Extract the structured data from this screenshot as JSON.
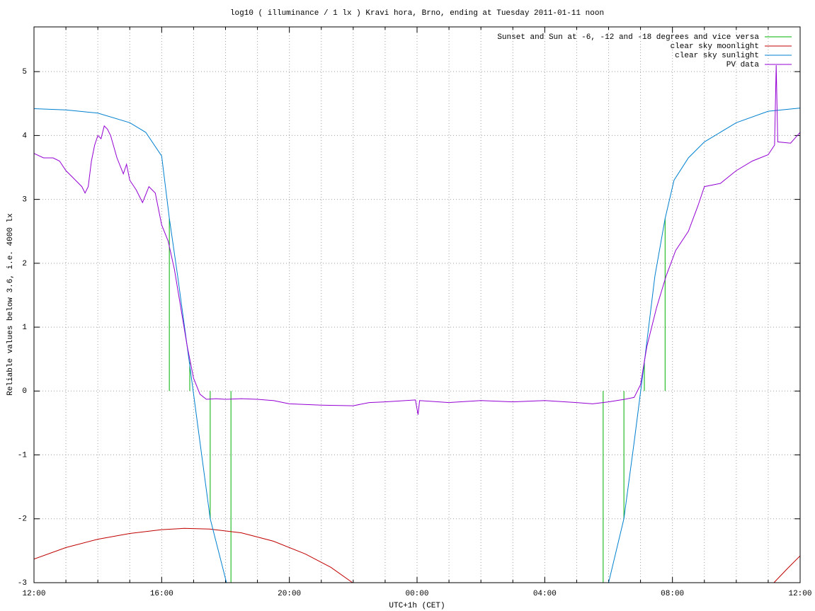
{
  "chart_data": {
    "type": "line",
    "title": "log10 ( illuminance / 1 lx ) Kravi hora, Brno, ending at Tuesday 2011-01-11 noon",
    "x_label": "UTC+1h (CET)",
    "y_label": "Reliable values below 3.6, i.e. 4000 lx",
    "xlim": [
      0,
      24
    ],
    "xticks": [
      {
        "value": 0,
        "label": "12:00"
      },
      {
        "value": 4,
        "label": "16:00"
      },
      {
        "value": 8,
        "label": "20:00"
      },
      {
        "value": 12,
        "label": "00:00"
      },
      {
        "value": 16,
        "label": "04:00"
      },
      {
        "value": 20,
        "label": "08:00"
      },
      {
        "value": 24,
        "label": "12:00"
      }
    ],
    "xminor": 4,
    "ylim": [
      -3,
      5.7
    ],
    "yticks": [
      -3,
      -2,
      -1,
      0,
      1,
      2,
      3,
      4,
      5
    ],
    "grid": true,
    "legend": "top-right",
    "series": [
      {
        "name": "Sunset and Sun at -6, -12 and -18 degrees and vice versa",
        "color": "#00b000",
        "style": "impulses",
        "x": [
          4.24,
          4.88,
          5.52,
          6.17,
          17.83,
          18.48,
          19.12,
          19.77
        ],
        "values": [
          2.7,
          0.45,
          -2.0,
          -3,
          -3,
          -2.0,
          0.45,
          2.7
        ]
      },
      {
        "name": "clear sky moonlight",
        "color": "#c00000",
        "style": "line",
        "x": [
          0,
          1,
          2,
          3,
          4,
          4.7,
          5.5,
          6.5,
          7.5,
          8.5,
          9.3,
          9.98,
          23.18,
          23.6,
          24
        ],
        "values": [
          -2.63,
          -2.45,
          -2.32,
          -2.23,
          -2.17,
          -2.15,
          -2.16,
          -2.22,
          -2.35,
          -2.55,
          -2.76,
          -3,
          -3,
          -2.78,
          -2.58
        ]
      },
      {
        "name": "clear sky sunlight",
        "color": "#0080d0",
        "style": "line",
        "x": [
          0,
          1,
          2,
          3,
          3.5,
          4,
          4.24,
          4.5,
          4.88,
          5.2,
          5.52,
          6.03,
          18.0,
          18.48,
          18.8,
          19.12,
          19.45,
          19.77,
          20.05,
          20.5,
          21,
          22,
          23,
          24
        ],
        "values": [
          4.42,
          4.4,
          4.35,
          4.2,
          4.05,
          3.68,
          2.7,
          1.8,
          0.4,
          -0.8,
          -2.0,
          -3,
          -3,
          -2.0,
          -0.8,
          0.45,
          1.8,
          2.7,
          3.3,
          3.65,
          3.9,
          4.2,
          4.38,
          4.43
        ]
      },
      {
        "name": "PV data",
        "color": "#9400d3",
        "style": "line",
        "x": [
          0,
          0.3,
          0.6,
          0.8,
          1.0,
          1.2,
          1.5,
          1.6,
          1.7,
          1.8,
          1.9,
          2.0,
          2.1,
          2.2,
          2.3,
          2.4,
          2.6,
          2.8,
          2.9,
          3.0,
          3.2,
          3.4,
          3.6,
          3.8,
          4.0,
          4.2,
          4.4,
          4.6,
          4.8,
          5.0,
          5.2,
          5.4,
          5.7,
          6.0,
          6.5,
          7.0,
          7.5,
          8,
          9,
          10,
          10.5,
          11,
          11.95,
          12.03,
          12.08,
          13,
          14,
          15,
          16,
          17,
          17.5,
          18,
          18.5,
          18.8,
          19.0,
          19.2,
          19.5,
          19.8,
          20.1,
          20.5,
          20.8,
          21,
          21.5,
          22,
          22.5,
          23,
          23.2,
          23.25,
          23.3,
          23.7,
          24
        ],
        "values": [
          3.72,
          3.65,
          3.65,
          3.6,
          3.45,
          3.35,
          3.2,
          3.1,
          3.2,
          3.6,
          3.85,
          4.0,
          3.95,
          4.15,
          4.1,
          4.0,
          3.65,
          3.4,
          3.55,
          3.3,
          3.15,
          2.95,
          3.2,
          3.1,
          2.6,
          2.35,
          1.9,
          1.3,
          0.7,
          0.2,
          -0.05,
          -0.13,
          -0.12,
          -0.13,
          -0.12,
          -0.13,
          -0.15,
          -0.2,
          -0.22,
          -0.23,
          -0.18,
          -0.17,
          -0.14,
          -0.37,
          -0.15,
          -0.18,
          -0.15,
          -0.17,
          -0.15,
          -0.18,
          -0.2,
          -0.17,
          -0.13,
          -0.1,
          0.1,
          0.7,
          1.3,
          1.8,
          2.2,
          2.5,
          2.9,
          3.2,
          3.25,
          3.45,
          3.6,
          3.7,
          3.85,
          5.1,
          3.9,
          3.88,
          4.05
        ]
      }
    ]
  }
}
